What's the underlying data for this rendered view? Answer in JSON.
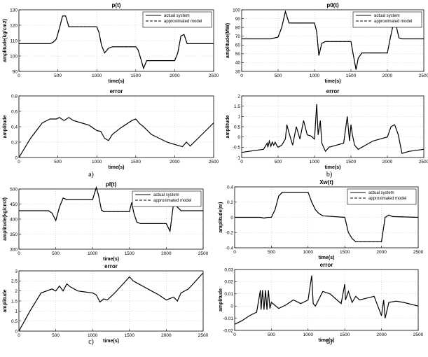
{
  "chart_data": [
    {
      "id": "a-top",
      "type": "line",
      "title": "p(t)",
      "xlabel": "time(s)",
      "ylabel": "amplitude(kg/cm2)",
      "xlim": [
        0,
        2500
      ],
      "ylim": [
        90,
        130
      ],
      "xticks": [
        0,
        500,
        1000,
        1500,
        2000,
        2500
      ],
      "yticks": [
        90,
        100,
        110,
        120,
        130
      ],
      "grid": true,
      "legend": "top-right",
      "series": [
        {
          "name": "actual system",
          "style": "solid",
          "x": [
            0,
            400,
            440,
            480,
            520,
            560,
            600,
            640,
            1000,
            1030,
            1060,
            1100,
            1150,
            1200,
            1500,
            1530,
            1560,
            1600,
            1640,
            2000,
            2040,
            2080,
            2120,
            2160,
            2200,
            2500
          ],
          "y": [
            108,
            108,
            109,
            111,
            118,
            126,
            126,
            119,
            119,
            115,
            107,
            102,
            105,
            106,
            106,
            104,
            99,
            92,
            97,
            97,
            102,
            113,
            114,
            108,
            108,
            108
          ]
        },
        {
          "name": "approximated model",
          "style": "dashed",
          "x": [
            0,
            400,
            440,
            480,
            520,
            560,
            600,
            640,
            1000,
            1030,
            1060,
            1100,
            1150,
            1200,
            1500,
            1530,
            1560,
            1600,
            1640,
            2000,
            2040,
            2080,
            2120,
            2160,
            2200,
            2500
          ],
          "y": [
            108,
            108,
            109,
            111,
            118,
            126,
            126,
            119,
            119,
            115,
            107,
            102,
            105,
            106,
            106,
            104,
            99,
            92,
            97,
            97,
            102,
            113,
            114,
            108,
            108,
            108
          ]
        }
      ]
    },
    {
      "id": "b-top",
      "type": "line",
      "title": "p0(t)",
      "xlabel": "time(s)",
      "ylabel": "amplitude(MW)",
      "xlim": [
        0,
        2500
      ],
      "ylim": [
        30,
        100
      ],
      "xticks": [
        0,
        500,
        1000,
        1500,
        2000,
        2500
      ],
      "yticks": [
        30,
        40,
        50,
        60,
        70,
        80,
        90,
        100
      ],
      "grid": true,
      "legend": "top-right",
      "series": [
        {
          "name": "actual system",
          "style": "solid",
          "x": [
            0,
            400,
            500,
            550,
            600,
            620,
            650,
            700,
            1000,
            1030,
            1060,
            1100,
            1150,
            1200,
            1500,
            1530,
            1570,
            1600,
            1650,
            2000,
            2040,
            2080,
            2120,
            2160,
            2200,
            2500
          ],
          "y": [
            67,
            67,
            69,
            80,
            98,
            93,
            85,
            85,
            85,
            75,
            48,
            62,
            64,
            64,
            64,
            50,
            32,
            45,
            51,
            51,
            68,
            83,
            82,
            68,
            67,
            67
          ]
        },
        {
          "name": "approximated model",
          "style": "dashed",
          "x": [
            0,
            400,
            500,
            550,
            600,
            620,
            650,
            700,
            1000,
            1030,
            1060,
            1100,
            1150,
            1200,
            1500,
            1530,
            1570,
            1600,
            1650,
            2000,
            2040,
            2080,
            2120,
            2160,
            2200,
            2500
          ],
          "y": [
            67,
            67,
            69,
            80,
            98,
            93,
            85,
            85,
            85,
            75,
            48,
            62,
            64,
            64,
            64,
            50,
            32,
            45,
            51,
            51,
            68,
            83,
            82,
            68,
            67,
            67
          ]
        }
      ]
    },
    {
      "id": "a-bottom",
      "type": "line",
      "title": "error",
      "xlabel": "time(s)",
      "ylabel": "amplitude",
      "xlim": [
        0,
        2500
      ],
      "ylim": [
        0,
        0.8
      ],
      "xticks": [
        0,
        500,
        1000,
        1500,
        2000,
        2500
      ],
      "yticks": [
        0,
        0.2,
        0.4,
        0.6,
        0.8
      ],
      "grid": true,
      "series": [
        {
          "name": "",
          "style": "solid",
          "x": [
            0,
            150,
            300,
            400,
            480,
            520,
            580,
            640,
            700,
            800,
            900,
            1000,
            1050,
            1100,
            1150,
            1200,
            1300,
            1450,
            1500,
            1550,
            1600,
            1700,
            1800,
            1900,
            2000,
            2100,
            2150,
            2200,
            2300,
            2500
          ],
          "y": [
            0,
            0.25,
            0.45,
            0.5,
            0.5,
            0.52,
            0.48,
            0.52,
            0.48,
            0.45,
            0.42,
            0.35,
            0.34,
            0.25,
            0.22,
            0.3,
            0.38,
            0.48,
            0.5,
            0.44,
            0.4,
            0.3,
            0.25,
            0.2,
            0.17,
            0.14,
            0.2,
            0.15,
            0.25,
            0.45
          ]
        }
      ]
    },
    {
      "id": "b-bottom",
      "type": "line",
      "title": "error",
      "xlabel": "time(s)",
      "ylabel": "amplitude",
      "xlim": [
        0,
        2500
      ],
      "ylim": [
        -1,
        2
      ],
      "xticks": [
        0,
        500,
        1000,
        1500,
        2000,
        2500
      ],
      "yticks": [
        -1,
        -0.5,
        0,
        0.5,
        1,
        1.5,
        2
      ],
      "grid": true,
      "series": [
        {
          "name": "",
          "style": "solid",
          "x": [
            0,
            100,
            200,
            300,
            350,
            360,
            380,
            400,
            420,
            440,
            460,
            480,
            500,
            550,
            600,
            620,
            650,
            700,
            750,
            800,
            850,
            900,
            950,
            1000,
            1030,
            1050,
            1080,
            1100,
            1150,
            1200,
            1300,
            1400,
            1450,
            1480,
            1500,
            1520,
            1550,
            1600,
            1650,
            1700,
            1750,
            1800,
            1900,
            2000,
            2050,
            2100,
            2150,
            2200,
            2300,
            2400,
            2500
          ],
          "y": [
            -0.75,
            -0.7,
            -0.65,
            -0.6,
            -0.3,
            -0.5,
            -0.2,
            -0.45,
            -0.25,
            -0.4,
            -0.25,
            -0.4,
            -0.5,
            -0.4,
            -0.1,
            0.6,
            0.2,
            -0.4,
            0.5,
            -0.1,
            0.8,
            0.1,
            0.05,
            -0.1,
            1.6,
            0.1,
            0.8,
            -0.3,
            -0.7,
            -0.5,
            -0.4,
            -0.3,
            1,
            -0.2,
            0.6,
            0.1,
            -0.4,
            -0.6,
            -0.5,
            -0.4,
            -0.3,
            -0.2,
            -0.1,
            0,
            0.5,
            0.6,
            0.1,
            -0.8,
            -0.7,
            -0.65,
            -0.6
          ]
        }
      ]
    },
    {
      "id": "c-top",
      "type": "line",
      "title": "pf(t)",
      "xlabel": "time(s)",
      "ylabel": "amplitude(kg/cm3)",
      "xlim": [
        0,
        2500
      ],
      "ylim": [
        300,
        500
      ],
      "xticks": [
        0,
        500,
        1000,
        1500,
        2000,
        2500
      ],
      "yticks": [
        300,
        350,
        400,
        450,
        500
      ],
      "grid": true,
      "legend": "top-right",
      "series": [
        {
          "name": "actual system",
          "style": "solid",
          "x": [
            0,
            400,
            450,
            500,
            550,
            600,
            650,
            1000,
            1050,
            1080,
            1120,
            1150,
            1200,
            1500,
            1530,
            1560,
            1600,
            1650,
            2000,
            2050,
            2100,
            2150,
            2200,
            2500
          ],
          "y": [
            428,
            428,
            420,
            395,
            440,
            470,
            465,
            465,
            505,
            480,
            430,
            425,
            425,
            425,
            455,
            420,
            390,
            385,
            385,
            360,
            455,
            440,
            428,
            428
          ]
        },
        {
          "name": "approximated model",
          "style": "dashed",
          "x": [
            0,
            400,
            450,
            500,
            550,
            600,
            650,
            1000,
            1050,
            1080,
            1120,
            1150,
            1200,
            1500,
            1530,
            1560,
            1600,
            1650,
            2000,
            2050,
            2100,
            2150,
            2200,
            2500
          ],
          "y": [
            428,
            428,
            420,
            395,
            440,
            470,
            465,
            465,
            505,
            480,
            430,
            425,
            425,
            425,
            455,
            420,
            390,
            385,
            385,
            360,
            455,
            440,
            428,
            428
          ]
        }
      ]
    },
    {
      "id": "d-top",
      "type": "line",
      "title": "Xw(t)",
      "xlabel": "time(s)",
      "ylabel": "amplitude(m)",
      "xlim": [
        0,
        2500
      ],
      "ylim": [
        -0.4,
        0.4
      ],
      "xticks": [
        0,
        500,
        1000,
        1500,
        2000,
        2500
      ],
      "yticks": [
        -0.4,
        -0.2,
        0,
        0.2,
        0.4
      ],
      "grid": true,
      "legend": "top-right",
      "series": [
        {
          "name": "actual system",
          "style": "solid",
          "x": [
            0,
            350,
            400,
            450,
            500,
            550,
            600,
            650,
            1000,
            1050,
            1100,
            1150,
            1200,
            1500,
            1550,
            1600,
            1650,
            2000,
            2050,
            2100,
            2150,
            2500
          ],
          "y": [
            0,
            0,
            -0.01,
            0,
            0,
            0.1,
            0.28,
            0.33,
            0.33,
            0.2,
            0.1,
            0.05,
            0.02,
            0,
            -0.2,
            -0.28,
            -0.32,
            -0.32,
            0,
            0.03,
            0.01,
            0
          ]
        },
        {
          "name": "approximated model",
          "style": "dashed",
          "x": [
            0,
            350,
            400,
            450,
            500,
            550,
            600,
            650,
            1000,
            1050,
            1100,
            1150,
            1200,
            1500,
            1550,
            1600,
            1650,
            2000,
            2050,
            2100,
            2150,
            2500
          ],
          "y": [
            0,
            0,
            -0.01,
            0,
            0,
            0.1,
            0.28,
            0.33,
            0.33,
            0.2,
            0.1,
            0.05,
            0.02,
            0,
            -0.2,
            -0.28,
            -0.32,
            -0.32,
            0,
            0.03,
            0.01,
            0
          ]
        }
      ]
    },
    {
      "id": "c-bottom",
      "type": "line",
      "title": "error",
      "xlabel": "time(s)",
      "ylabel": "amplitude",
      "xlim": [
        0,
        2500
      ],
      "ylim": [
        0,
        3
      ],
      "xticks": [
        0,
        500,
        1000,
        1500,
        2000,
        2500
      ],
      "yticks": [
        0,
        0.5,
        1,
        1.5,
        2,
        2.5,
        3
      ],
      "grid": true,
      "series": [
        {
          "name": "",
          "style": "solid",
          "x": [
            0,
            150,
            300,
            450,
            500,
            550,
            600,
            650,
            700,
            800,
            900,
            1000,
            1050,
            1100,
            1150,
            1200,
            1300,
            1400,
            1500,
            1550,
            1600,
            1700,
            1800,
            1900,
            2000,
            2100,
            2150,
            2200,
            2300,
            2500
          ],
          "y": [
            0,
            1,
            1.9,
            2.1,
            2,
            2.25,
            2,
            2.35,
            2.2,
            2,
            1.95,
            1.9,
            1.8,
            1.45,
            1.6,
            1.55,
            1.9,
            2.3,
            2.7,
            2.5,
            2.4,
            2.2,
            2,
            1.8,
            1.55,
            1.7,
            1.5,
            1.9,
            2.1,
            2.9
          ]
        }
      ]
    },
    {
      "id": "d-bottom",
      "type": "line",
      "title": "error",
      "xlabel": "time(s)",
      "ylabel": "amplitude",
      "xlim": [
        0,
        2500
      ],
      "ylim": [
        -0.02,
        0.03
      ],
      "xticks": [
        0,
        500,
        1000,
        1500,
        2000,
        2500
      ],
      "yticks": [
        -0.02,
        -0.01,
        0,
        0.01,
        0.02,
        0.03
      ],
      "grid": true,
      "series": [
        {
          "name": "",
          "style": "solid",
          "x": [
            0,
            100,
            200,
            300,
            350,
            360,
            380,
            400,
            420,
            440,
            460,
            480,
            500,
            600,
            700,
            800,
            900,
            1000,
            1050,
            1070,
            1100,
            1200,
            1300,
            1450,
            1500,
            1510,
            1550,
            1600,
            1650,
            1700,
            1900,
            2000,
            2030,
            2050,
            2100,
            2200,
            2300,
            2500
          ],
          "y": [
            -0.015,
            -0.012,
            -0.008,
            -0.005,
            0.013,
            -0.003,
            0.013,
            -0.003,
            0.013,
            -0.003,
            0.013,
            -0.002,
            0.003,
            -0.002,
            0.001,
            0.005,
            0.002,
            0.005,
            0.025,
            0.002,
            0,
            0.012,
            0.01,
            0.002,
            0.018,
            0.005,
            0.012,
            0.003,
            0.008,
            0.005,
            0.008,
            -0.008,
            0.005,
            -0.01,
            0.003,
            0.004,
            0.003,
            0
          ]
        }
      ]
    }
  ],
  "panel_labels": [
    "a)",
    "b)",
    "c)",
    "d)"
  ]
}
